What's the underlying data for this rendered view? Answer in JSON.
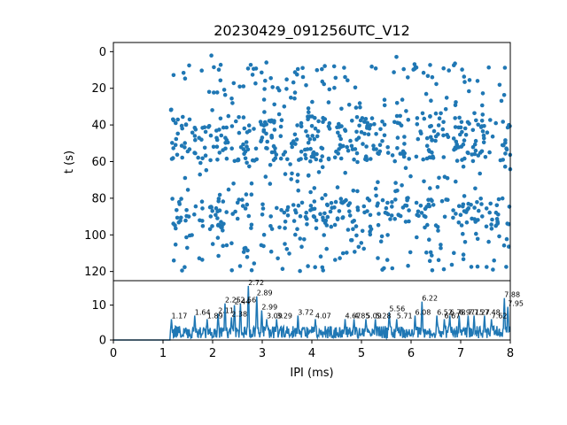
{
  "chart_data": [
    {
      "type": "scatter",
      "title": "20230429_091256UTC_V12",
      "ylabel": "t (s)",
      "y_inverted": true,
      "xlim": [
        0,
        8
      ],
      "ylim": [
        125,
        -5
      ],
      "yticks": [
        "0",
        "20",
        "40",
        "60",
        "80",
        "100",
        "120"
      ],
      "xticks_shown": false,
      "color": "#1f77b4",
      "x_extent": [
        1.15,
        8.0
      ],
      "y_extent": [
        2,
        120
      ],
      "dense_bands_t": [
        [
          35,
          60
        ],
        [
          80,
          97
        ]
      ]
    },
    {
      "type": "line",
      "xlabel": "IPI (ms)",
      "xlim": [
        0,
        8
      ],
      "ylim": [
        0,
        17
      ],
      "xticks": [
        "0",
        "1",
        "2",
        "3",
        "4",
        "5",
        "6",
        "7",
        "8"
      ],
      "yticks": [
        "0",
        "10"
      ],
      "color": "#1f77b4",
      "baseline_until": 1.15,
      "peak_labels": [
        "1.17",
        "1.64",
        "1.89",
        "2.11",
        "2.25",
        "2.38",
        "2.44",
        "2.56",
        "2.72",
        "2.89",
        "2.99",
        "3.09",
        "3.29",
        "3.72",
        "4.07",
        "4.67",
        "4.85",
        "5.09",
        "5.28",
        "5.56",
        "5.71",
        "6.08",
        "6.22",
        "6.52",
        "6.67",
        "6.78",
        "6.97",
        "7.15",
        "7.27",
        "7.48",
        "7.62",
        "7.88",
        "7.95"
      ],
      "peaks": [
        {
          "x": 1.17,
          "y": 6
        },
        {
          "x": 1.64,
          "y": 7
        },
        {
          "x": 1.89,
          "y": 6
        },
        {
          "x": 2.11,
          "y": 7.5
        },
        {
          "x": 2.25,
          "y": 10.5
        },
        {
          "x": 2.38,
          "y": 6.5
        },
        {
          "x": 2.44,
          "y": 10
        },
        {
          "x": 2.56,
          "y": 10.5
        },
        {
          "x": 2.72,
          "y": 15.5
        },
        {
          "x": 2.89,
          "y": 12.5
        },
        {
          "x": 2.99,
          "y": 8.5
        },
        {
          "x": 3.09,
          "y": 6
        },
        {
          "x": 3.29,
          "y": 6
        },
        {
          "x": 3.72,
          "y": 7
        },
        {
          "x": 4.07,
          "y": 6
        },
        {
          "x": 4.67,
          "y": 6
        },
        {
          "x": 4.85,
          "y": 6
        },
        {
          "x": 5.09,
          "y": 6
        },
        {
          "x": 5.28,
          "y": 6
        },
        {
          "x": 5.56,
          "y": 8
        },
        {
          "x": 5.71,
          "y": 6
        },
        {
          "x": 6.08,
          "y": 7
        },
        {
          "x": 6.22,
          "y": 11
        },
        {
          "x": 6.52,
          "y": 7
        },
        {
          "x": 6.67,
          "y": 6
        },
        {
          "x": 6.78,
          "y": 7
        },
        {
          "x": 6.97,
          "y": 7
        },
        {
          "x": 7.15,
          "y": 7
        },
        {
          "x": 7.27,
          "y": 7
        },
        {
          "x": 7.48,
          "y": 7
        },
        {
          "x": 7.62,
          "y": 6
        },
        {
          "x": 7.88,
          "y": 12
        },
        {
          "x": 7.95,
          "y": 9.5
        }
      ]
    }
  ]
}
